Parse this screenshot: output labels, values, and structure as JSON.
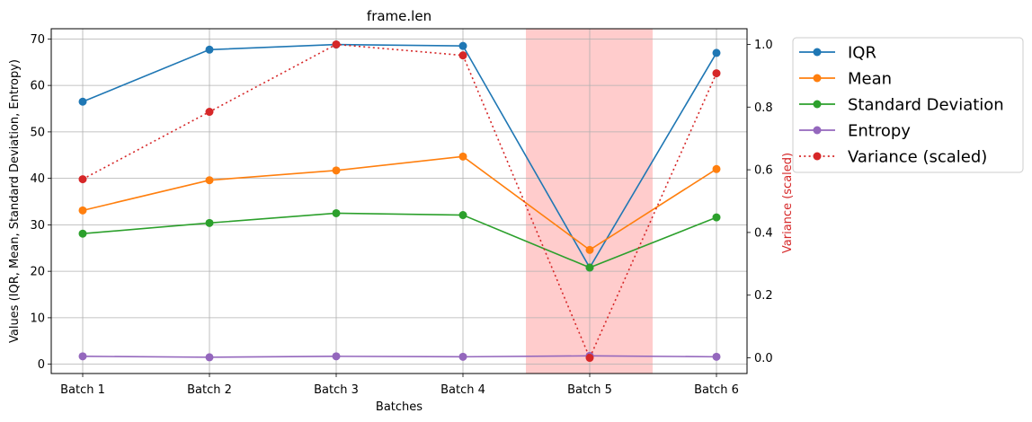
{
  "chart_data": {
    "type": "line",
    "title": "frame.len",
    "xlabel": "Batches",
    "ylabel": "Values (IQR, Mean, Standard Deviation, Entropy)",
    "ylabel_right": "Variance (scaled)",
    "categories": [
      "Batch 1",
      "Batch 2",
      "Batch 3",
      "Batch 4",
      "Batch 5",
      "Batch 6"
    ],
    "ylim": [
      -2,
      72.2
    ],
    "ylim_right": [
      -0.05,
      1.05
    ],
    "yticks": [
      "0",
      "10",
      "20",
      "30",
      "40",
      "50",
      "60",
      "70"
    ],
    "yticks_right": [
      "0.0",
      "0.2",
      "0.4",
      "0.6",
      "0.8",
      "1.0"
    ],
    "grid": true,
    "legend_placement": "outside-right-top",
    "highlight_region": {
      "from_category": "Batch 5",
      "span": [
        -0.5,
        0.5
      ],
      "color": "#ff9999"
    },
    "series": [
      {
        "name": "IQR",
        "axis": "left",
        "color": "#1f77b4",
        "style": "solid",
        "values": [
          56.5,
          67.7,
          68.8,
          68.5,
          20.8,
          67.0
        ]
      },
      {
        "name": "Mean",
        "axis": "left",
        "color": "#ff7f0e",
        "style": "solid",
        "values": [
          33.1,
          39.6,
          41.7,
          44.7,
          24.6,
          42.0
        ]
      },
      {
        "name": "Standard Deviation",
        "axis": "left",
        "color": "#2ca02c",
        "style": "solid",
        "values": [
          28.1,
          30.4,
          32.5,
          32.1,
          20.8,
          31.6
        ]
      },
      {
        "name": "Entropy",
        "axis": "left",
        "color": "#9467bd",
        "style": "solid",
        "values": [
          1.7,
          1.5,
          1.7,
          1.6,
          1.8,
          1.6
        ]
      },
      {
        "name": "Variance (scaled)",
        "axis": "right",
        "color": "#d62728",
        "style": "dotted",
        "values": [
          0.57,
          0.785,
          1.0,
          0.965,
          0.0,
          0.908
        ]
      }
    ]
  }
}
